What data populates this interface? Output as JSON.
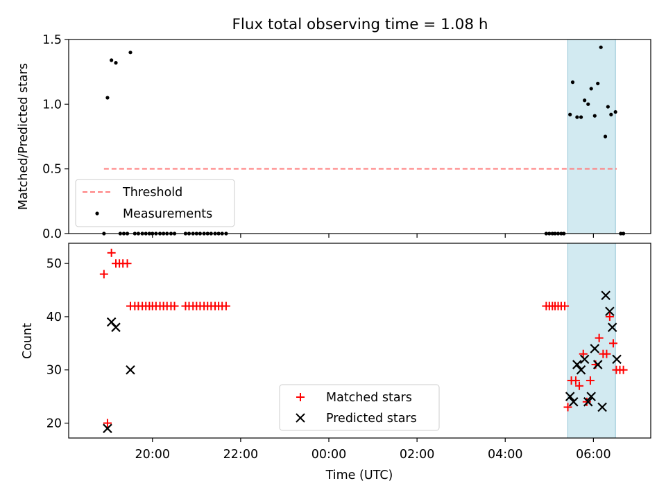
{
  "figure_title": "Flux total observing time = 1.08 h",
  "chart_data": [
    {
      "type": "scatter",
      "ylabel": "Matched/Predicted stars",
      "xlabel": "",
      "x_range_hours": [
        18.1,
        31.3
      ],
      "ylim": [
        0,
        1.5
      ],
      "yticks": [
        0.0,
        0.5,
        1.0,
        1.5
      ],
      "ytick_labels": [
        "0.0",
        "0.5",
        "1.0",
        "1.5"
      ],
      "threshold": {
        "name": "Threshold",
        "value": 0.5,
        "x": [
          18.9,
          30.53
        ],
        "color": "#ff7f7f"
      },
      "highlight": {
        "x": [
          29.42,
          30.5
        ],
        "color": "#add8e6"
      },
      "series": [
        {
          "name": "Measurements",
          "color": "#000000",
          "points": [
            [
              18.98,
              1.05
            ],
            [
              19.07,
              1.34
            ],
            [
              19.17,
              1.32
            ],
            [
              19.5,
              1.4
            ],
            [
              29.47,
              0.92
            ],
            [
              29.53,
              1.17
            ],
            [
              29.63,
              0.9
            ],
            [
              29.72,
              0.9
            ],
            [
              29.8,
              1.03
            ],
            [
              29.88,
              1.0
            ],
            [
              29.95,
              1.12
            ],
            [
              30.03,
              0.91
            ],
            [
              30.1,
              1.16
            ],
            [
              30.17,
              1.44
            ],
            [
              30.27,
              0.75
            ],
            [
              30.33,
              0.98
            ],
            [
              30.4,
              0.92
            ],
            [
              30.5,
              0.94
            ],
            [
              18.9,
              0
            ],
            [
              19.27,
              0
            ],
            [
              19.35,
              0
            ],
            [
              19.43,
              0
            ],
            [
              19.6,
              0
            ],
            [
              19.68,
              0
            ],
            [
              19.77,
              0
            ],
            [
              19.85,
              0
            ],
            [
              19.93,
              0
            ],
            [
              20.0,
              0
            ],
            [
              20.08,
              0
            ],
            [
              20.17,
              0
            ],
            [
              20.25,
              0
            ],
            [
              20.33,
              0
            ],
            [
              20.42,
              0
            ],
            [
              20.5,
              0
            ],
            [
              20.75,
              0
            ],
            [
              20.83,
              0
            ],
            [
              20.92,
              0
            ],
            [
              21.0,
              0
            ],
            [
              21.08,
              0
            ],
            [
              21.17,
              0
            ],
            [
              21.25,
              0
            ],
            [
              21.33,
              0
            ],
            [
              21.42,
              0
            ],
            [
              21.5,
              0
            ],
            [
              21.58,
              0
            ],
            [
              21.67,
              0
            ],
            [
              28.93,
              0
            ],
            [
              29.0,
              0
            ],
            [
              29.07,
              0
            ],
            [
              29.13,
              0
            ],
            [
              29.2,
              0
            ],
            [
              29.27,
              0
            ],
            [
              29.33,
              0
            ],
            [
              30.62,
              0
            ],
            [
              30.68,
              0
            ]
          ]
        }
      ],
      "legend": {
        "location": "lower left",
        "entries": [
          "Threshold",
          "Measurements"
        ]
      }
    },
    {
      "type": "scatter",
      "ylabel": "Count",
      "xlabel": "Time (UTC)",
      "x_range_hours": [
        18.1,
        31.3
      ],
      "ylim": [
        17.2,
        53.8
      ],
      "yticks": [
        20,
        30,
        40,
        50
      ],
      "ytick_labels": [
        "20",
        "30",
        "40",
        "50"
      ],
      "xticks": [
        20,
        22,
        24,
        26,
        28,
        30
      ],
      "xtick_labels": [
        "20:00",
        "22:00",
        "00:00",
        "02:00",
        "04:00",
        "06:00"
      ],
      "highlight": {
        "x": [
          29.42,
          30.5
        ],
        "color": "#add8e6"
      },
      "series": [
        {
          "name": "Matched stars",
          "marker": "plus",
          "color": "#ff0000",
          "points": [
            [
              18.9,
              48
            ],
            [
              18.98,
              20
            ],
            [
              19.07,
              52
            ],
            [
              19.17,
              50
            ],
            [
              19.25,
              50
            ],
            [
              19.33,
              50
            ],
            [
              19.43,
              50
            ],
            [
              19.5,
              42
            ],
            [
              19.6,
              42
            ],
            [
              19.68,
              42
            ],
            [
              19.77,
              42
            ],
            [
              19.85,
              42
            ],
            [
              19.93,
              42
            ],
            [
              20.0,
              42
            ],
            [
              20.08,
              42
            ],
            [
              20.17,
              42
            ],
            [
              20.25,
              42
            ],
            [
              20.33,
              42
            ],
            [
              20.42,
              42
            ],
            [
              20.5,
              42
            ],
            [
              20.75,
              42
            ],
            [
              20.83,
              42
            ],
            [
              20.92,
              42
            ],
            [
              21.0,
              42
            ],
            [
              21.08,
              42
            ],
            [
              21.17,
              42
            ],
            [
              21.25,
              42
            ],
            [
              21.33,
              42
            ],
            [
              21.42,
              42
            ],
            [
              21.5,
              42
            ],
            [
              21.58,
              42
            ],
            [
              21.67,
              42
            ],
            [
              28.93,
              42
            ],
            [
              29.0,
              42
            ],
            [
              29.07,
              42
            ],
            [
              29.13,
              42
            ],
            [
              29.2,
              42
            ],
            [
              29.27,
              42
            ],
            [
              29.35,
              42
            ],
            [
              29.42,
              23
            ],
            [
              29.5,
              28
            ],
            [
              29.6,
              28
            ],
            [
              29.68,
              27
            ],
            [
              29.77,
              33
            ],
            [
              29.85,
              24
            ],
            [
              29.93,
              28
            ],
            [
              30.05,
              31
            ],
            [
              30.13,
              36
            ],
            [
              30.22,
              33
            ],
            [
              30.3,
              33
            ],
            [
              30.37,
              40
            ],
            [
              30.45,
              35
            ],
            [
              30.52,
              30
            ],
            [
              30.6,
              30
            ],
            [
              30.68,
              30
            ]
          ]
        },
        {
          "name": "Predicted stars",
          "marker": "cross",
          "color": "#000000",
          "points": [
            [
              18.98,
              19
            ],
            [
              19.07,
              39
            ],
            [
              19.17,
              38
            ],
            [
              19.5,
              30
            ],
            [
              29.47,
              25
            ],
            [
              29.55,
              24
            ],
            [
              29.63,
              31
            ],
            [
              29.72,
              30
            ],
            [
              29.8,
              32
            ],
            [
              29.88,
              24
            ],
            [
              29.95,
              25
            ],
            [
              30.03,
              34
            ],
            [
              30.1,
              31
            ],
            [
              30.2,
              23
            ],
            [
              30.28,
              44
            ],
            [
              30.37,
              41
            ],
            [
              30.43,
              38
            ],
            [
              30.53,
              32
            ]
          ]
        }
      ],
      "legend": {
        "location": "lower center",
        "entries": [
          "Matched stars",
          "Predicted stars"
        ]
      }
    }
  ]
}
